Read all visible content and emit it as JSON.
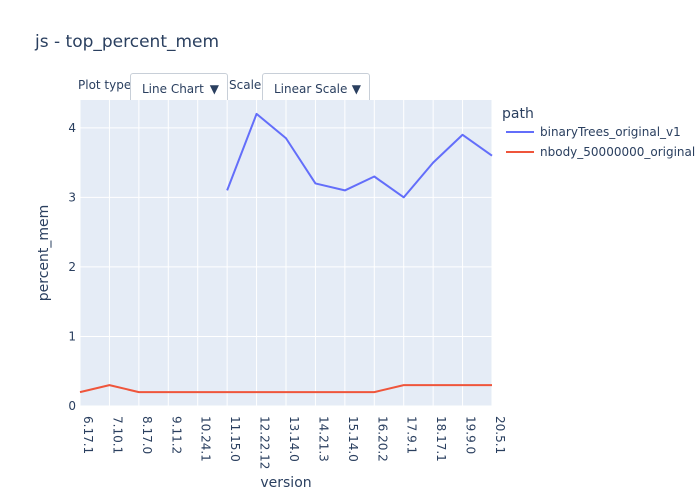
{
  "title": "js - top_percent_mem",
  "controls": {
    "plot_type_label": "Plot type:",
    "plot_type_value": "Line Chart",
    "scale_label": "Scale:",
    "scale_value": "Linear Scale",
    "arrow": "▼"
  },
  "chart_data": {
    "type": "line",
    "xlabel": "version",
    "ylabel": "percent_mem",
    "legend_title": "path",
    "legend_position": "right",
    "grid": true,
    "ylim": [
      0,
      4.4
    ],
    "yticks": [
      0,
      1,
      2,
      3,
      4
    ],
    "categories": [
      "6.17.1",
      "7.10.1",
      "8.17.0",
      "9.11.2",
      "10.24.1",
      "11.15.0",
      "12.22.12",
      "13.14.0",
      "14.21.3",
      "15.14.0",
      "16.20.2",
      "17.9.1",
      "18.17.1",
      "19.9.0",
      "20.5.1"
    ],
    "series": [
      {
        "name": "binaryTrees_original_v1",
        "color": "#636efa",
        "values": [
          null,
          null,
          null,
          null,
          null,
          3.1,
          4.2,
          3.85,
          3.2,
          3.1,
          3.3,
          3.0,
          3.5,
          3.9,
          3.6
        ]
      },
      {
        "name": "nbody_50000000_original",
        "color": "#ef553b",
        "values": [
          0.2,
          0.3,
          0.2,
          0.2,
          0.2,
          0.2,
          0.2,
          0.2,
          0.2,
          0.2,
          0.2,
          0.3,
          0.3,
          0.3,
          0.3
        ]
      }
    ]
  }
}
